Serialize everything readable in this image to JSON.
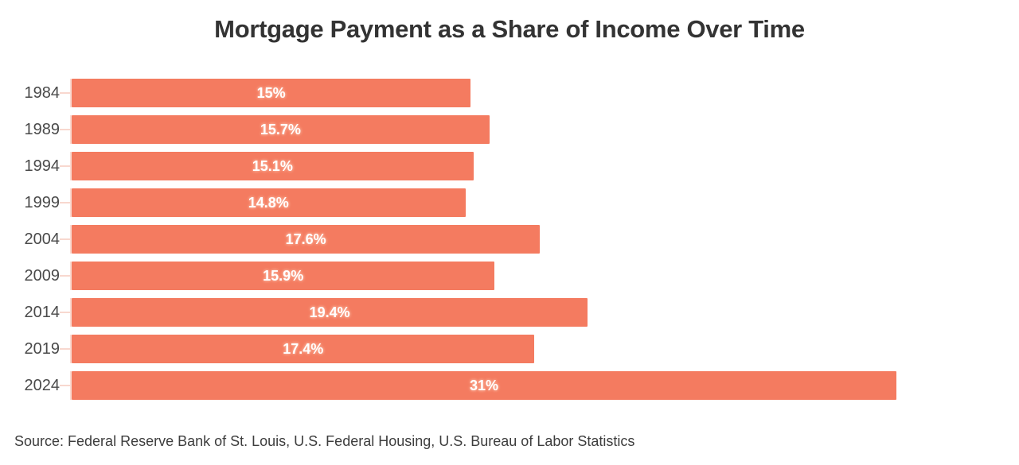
{
  "title": "Mortgage Payment as a Share of Income Over Time",
  "source": "Source: Federal Reserve Bank of St. Louis, U.S. Federal Housing, U.S. Bureau of Labor Statistics",
  "chart_data": {
    "type": "bar",
    "orientation": "horizontal",
    "title": "Mortgage Payment as a Share of Income Over Time",
    "categories": [
      "1984",
      "1989",
      "1994",
      "1999",
      "2004",
      "2009",
      "2014",
      "2019",
      "2024"
    ],
    "values": [
      15,
      15.7,
      15.1,
      14.8,
      17.6,
      15.9,
      19.4,
      17.4,
      31
    ],
    "value_labels": [
      "15%",
      "15.7%",
      "15.1%",
      "14.8%",
      "17.6%",
      "15.9%",
      "19.4%",
      "17.4%",
      "31%"
    ],
    "xlabel": "",
    "ylabel": "",
    "xlim": [
      0,
      31
    ],
    "grid": false,
    "legend": false
  },
  "colors": {
    "bar": "#F47B60",
    "value_label": "#FFFFFF",
    "value_label_halo": "#F9A78F",
    "axis_line": "#FADBD2",
    "tick": "#F8D8CF",
    "year_label": "#4A4A4A",
    "title": "#333333",
    "source": "#3D3D3D",
    "background": "#FFFFFF"
  }
}
